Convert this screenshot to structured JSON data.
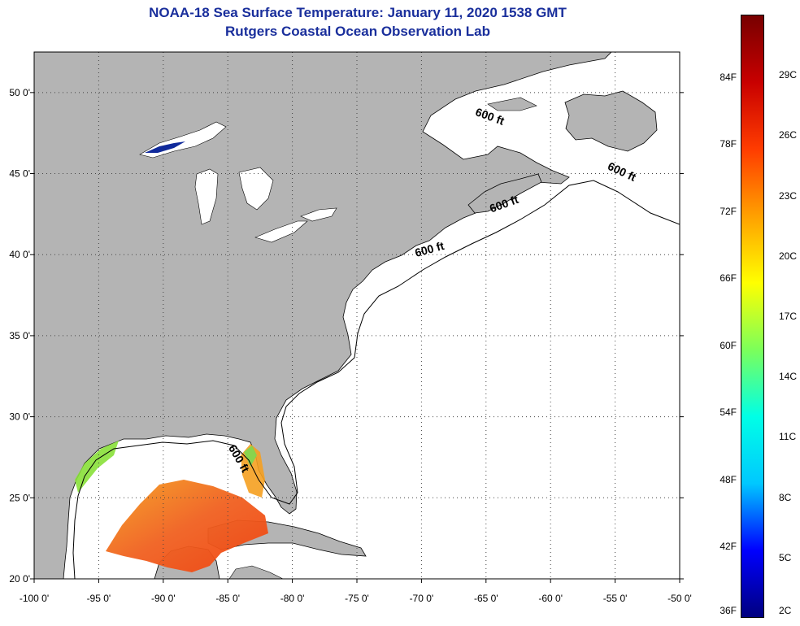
{
  "title": {
    "line1": "NOAA-18 Sea Surface Temperature:  January 11, 2020 1538 GMT",
    "line2": "Rutgers Coastal Ocean Observation Lab"
  },
  "map": {
    "lon_range": [
      -100,
      -50
    ],
    "lat_range": [
      20,
      52.5
    ],
    "lon_ticks": [
      {
        "value": -100,
        "label": "-100 0'"
      },
      {
        "value": -95,
        "label": "-95 0'"
      },
      {
        "value": -90,
        "label": "-90 0'"
      },
      {
        "value": -85,
        "label": "-85 0'"
      },
      {
        "value": -80,
        "label": "-80 0'"
      },
      {
        "value": -75,
        "label": "-75 0'"
      },
      {
        "value": -70,
        "label": "-70 0'"
      },
      {
        "value": -65,
        "label": "-65 0'"
      },
      {
        "value": -60,
        "label": "-60 0'"
      },
      {
        "value": -55,
        "label": "-55 0'"
      },
      {
        "value": -50,
        "label": "-50 0'"
      }
    ],
    "lat_ticks": [
      {
        "value": 20,
        "label": "20 0'"
      },
      {
        "value": 25,
        "label": "25 0'"
      },
      {
        "value": 30,
        "label": "30 0'"
      },
      {
        "value": 35,
        "label": "35 0'"
      },
      {
        "value": 40,
        "label": "40 0'"
      },
      {
        "value": 45,
        "label": "45 0'"
      },
      {
        "value": 50,
        "label": "50 0'"
      }
    ],
    "contour_labels": [
      {
        "text": "600 ft",
        "lon": -64.8,
        "lat": 48.3,
        "angle": 20
      },
      {
        "text": "600 ft",
        "lon": -54.6,
        "lat": 44.9,
        "angle": 25
      },
      {
        "text": "600 ft",
        "lon": -63.5,
        "lat": 42.9,
        "angle": -20
      },
      {
        "text": "600 ft",
        "lon": -69.3,
        "lat": 40.1,
        "angle": -15
      },
      {
        "text": "600 ft",
        "lon": -84.4,
        "lat": 27.3,
        "angle": 60
      }
    ],
    "colors": {
      "land": "#b4b4b4",
      "water": "#ffffff",
      "grid": "#444444",
      "gulf_warm": "#f2420f",
      "gulf_mid": "#f5a020",
      "coastal_green": "#88e038"
    }
  },
  "colorbar": {
    "fahrenheit": [
      {
        "value": 84,
        "label": "84F"
      },
      {
        "value": 78,
        "label": "78F"
      },
      {
        "value": 72,
        "label": "72F"
      },
      {
        "value": 66,
        "label": "66F"
      },
      {
        "value": 60,
        "label": "60F"
      },
      {
        "value": 54,
        "label": "54F"
      },
      {
        "value": 48,
        "label": "48F"
      },
      {
        "value": 42,
        "label": "42F"
      },
      {
        "value": 36,
        "label": "36F"
      }
    ],
    "celsius": [
      {
        "value": 29,
        "label": "29C"
      },
      {
        "value": 26,
        "label": "26C"
      },
      {
        "value": 23,
        "label": "23C"
      },
      {
        "value": 20,
        "label": "20C"
      },
      {
        "value": 17,
        "label": "17C"
      },
      {
        "value": 14,
        "label": "14C"
      },
      {
        "value": 11,
        "label": "11C"
      },
      {
        "value": 8,
        "label": "8C"
      },
      {
        "value": 5,
        "label": "5C"
      },
      {
        "value": 2,
        "label": "2C"
      }
    ],
    "stops": [
      "#00007f",
      "#0000ff",
      "#00c8ff",
      "#00ffe6",
      "#7cff5a",
      "#ffff00",
      "#ffa000",
      "#ff3c00",
      "#c80000",
      "#780000"
    ]
  }
}
